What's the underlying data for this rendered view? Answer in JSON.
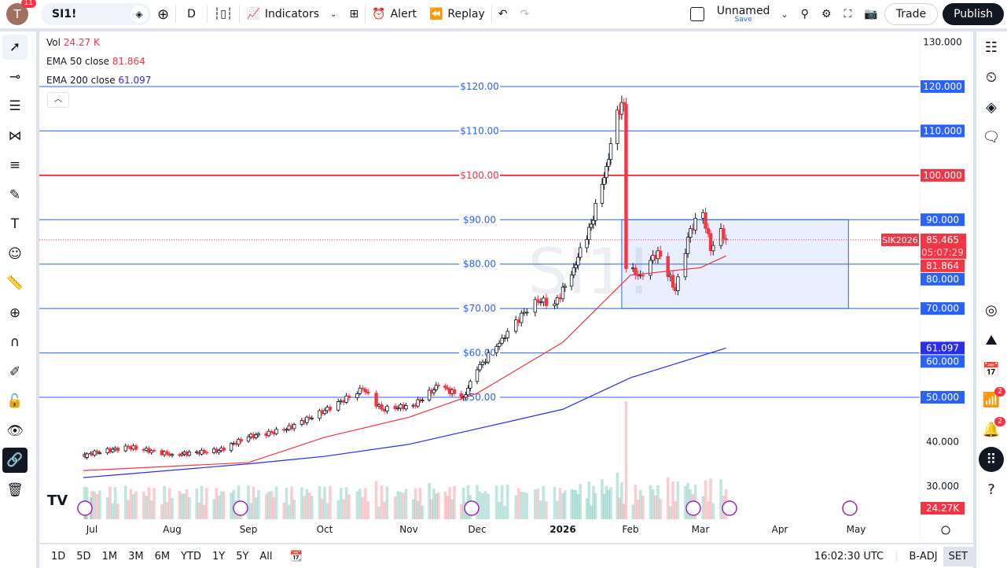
{
  "top": {
    "avatar_letter": "T",
    "notif_count": "11",
    "symbol": "SI1!",
    "interval": "D",
    "indicators": "Indicators",
    "alert": "Alert",
    "replay": "Replay",
    "layout_name": "Unnamed",
    "layout_save": "Save",
    "trade": "Trade",
    "publish": "Publish"
  },
  "legend": {
    "vol_label": "Vol",
    "vol_value": "24.27 K",
    "ema50_label": "EMA 50 close",
    "ema50_value": "81.864",
    "ema200_label": "EMA 200 close",
    "ema200_value": "61.097"
  },
  "watermark": "SI1!",
  "colors": {
    "up": "#089981",
    "down": "#f23645",
    "ema50": "#f23645",
    "ema200": "#2a2ee8",
    "hline": "#2962ff",
    "hline_red": "#f23645"
  },
  "price_axis": {
    "ticks": [
      "130.000",
      "40.000",
      "30.000"
    ],
    "tick_values": [
      130,
      40,
      30
    ]
  },
  "hlines": [
    {
      "value": 120,
      "label": "$120.00",
      "tag": "120.000",
      "color": "#2962ff"
    },
    {
      "value": 110,
      "label": "$110.00",
      "tag": "110.000",
      "color": "#2962ff"
    },
    {
      "value": 100,
      "label": "$100.00",
      "tag": "100.000",
      "color": "#f23645"
    },
    {
      "value": 90,
      "label": "$90.00",
      "tag": "90.000",
      "color": "#2962ff"
    },
    {
      "value": 80,
      "label": "$80.00",
      "tag": "80.000",
      "color": "#2962ff"
    },
    {
      "value": 70,
      "label": "$70.00",
      "tag": "70.000",
      "color": "#2962ff"
    },
    {
      "value": 60,
      "label": "$60.00",
      "tag": "60.000",
      "color": "#2962ff"
    },
    {
      "value": 50,
      "label": "$50.00",
      "tag": "50.000",
      "color": "#2962ff"
    }
  ],
  "rectangle": {
    "from": "2026-01-28",
    "to": "2026-04-28",
    "low": 70,
    "high": 90
  },
  "last_price": {
    "symbol_tag": "SIK2026",
    "price": "85.465",
    "countdown": "05:07:29",
    "ema50_tag": "81.864",
    "ema200_tag": "61.097",
    "volume_tag": "24.27K"
  },
  "time_axis": [
    "Jul",
    "Aug",
    "Sep",
    "Oct",
    "Nov",
    "Dec",
    "2026",
    "Feb",
    "Mar",
    "Apr",
    "May"
  ],
  "chart_data": {
    "type": "candlestick",
    "approx_closes": [
      [
        "2025-06-24",
        36.7
      ],
      [
        "2025-07-15",
        38.8
      ],
      [
        "2025-08-01",
        37.1
      ],
      [
        "2025-08-20",
        38
      ],
      [
        "2025-09-01",
        41.1
      ],
      [
        "2025-09-15",
        42.6
      ],
      [
        "2025-10-01",
        47
      ],
      [
        "2025-10-15",
        51.8
      ],
      [
        "2025-10-22",
        47.3
      ],
      [
        "2025-11-03",
        48.2
      ],
      [
        "2025-11-14",
        52.6
      ],
      [
        "2025-11-25",
        50
      ],
      [
        "2025-12-01",
        56.2
      ],
      [
        "2025-12-10",
        63.3
      ],
      [
        "2025-12-22",
        72
      ],
      [
        "2025-12-29",
        71
      ],
      [
        "2026-01-06",
        79.2
      ],
      [
        "2026-01-14",
        89
      ],
      [
        "2026-01-21",
        102
      ],
      [
        "2026-01-26",
        114.7
      ],
      [
        "2026-01-29",
        116
      ],
      [
        "2026-01-30",
        79
      ],
      [
        "2026-02-05",
        77.5
      ],
      [
        "2026-02-12",
        83
      ],
      [
        "2026-02-19",
        74
      ],
      [
        "2026-02-25",
        88
      ],
      [
        "2026-03-02",
        91.6
      ],
      [
        "2026-03-05",
        83
      ],
      [
        "2026-03-09",
        88
      ],
      [
        "2026-03-11",
        85.465
      ]
    ],
    "ema50": [
      [
        "2025-06-24",
        33.5
      ],
      [
        "2025-09-01",
        35.3
      ],
      [
        "2025-10-01",
        41
      ],
      [
        "2025-11-01",
        45.5
      ],
      [
        "2025-12-01",
        50.9
      ],
      [
        "2026-01-01",
        62.4
      ],
      [
        "2026-02-01",
        77.5
      ],
      [
        "2026-03-01",
        79.2
      ],
      [
        "2026-03-11",
        81.864
      ]
    ],
    "ema200": [
      [
        "2025-06-24",
        31.9
      ],
      [
        "2025-09-01",
        35
      ],
      [
        "2025-10-01",
        36.7
      ],
      [
        "2025-11-01",
        39.4
      ],
      [
        "2025-12-01",
        42.9
      ],
      [
        "2026-01-01",
        47.3
      ],
      [
        "2026-02-01",
        54.4
      ],
      [
        "2026-03-11",
        61.097
      ]
    ],
    "ylim": [
      28,
      132
    ]
  },
  "bottom": {
    "ranges": [
      "1D",
      "5D",
      "1M",
      "3M",
      "6M",
      "YTD",
      "1Y",
      "5Y",
      "All"
    ],
    "time": "16:02:30 UTC",
    "badj": "B-ADJ",
    "set": "SET"
  },
  "right_badges": {
    "feed": "2",
    "alerts": "2"
  }
}
